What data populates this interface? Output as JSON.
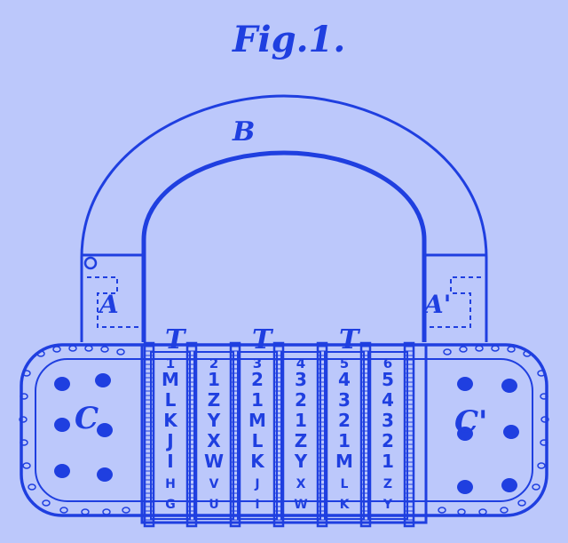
{
  "figure_title": "Fig.1.",
  "labels": {
    "shackle": "B",
    "left_socket": "A",
    "right_socket": "A'",
    "left_body": "C",
    "right_body": "C'",
    "tumbler_marks": [
      "T",
      "T",
      "T"
    ]
  },
  "wheels": [
    {
      "top": "1",
      "letters": [
        "M",
        "L",
        "K",
        "J",
        "I",
        "H",
        "G"
      ]
    },
    {
      "top": "2",
      "letters": [
        "1",
        "Z",
        "Y",
        "X",
        "W",
        "V",
        "U"
      ]
    },
    {
      "top": "3",
      "letters": [
        "2",
        "1",
        "M",
        "L",
        "K",
        "J",
        "I"
      ]
    },
    {
      "top": "4",
      "letters": [
        "3",
        "2",
        "1",
        "Z",
        "Y",
        "X",
        "W"
      ]
    },
    {
      "top": "5",
      "letters": [
        "4",
        "3",
        "2",
        "1",
        "M",
        "L",
        "K"
      ]
    },
    {
      "top": "6",
      "letters": [
        "5",
        "4",
        "3",
        "2",
        "1",
        "Z",
        "Y"
      ]
    }
  ],
  "colors": {
    "ink": "#1f3fe0",
    "paper": "#bcc8fb"
  }
}
